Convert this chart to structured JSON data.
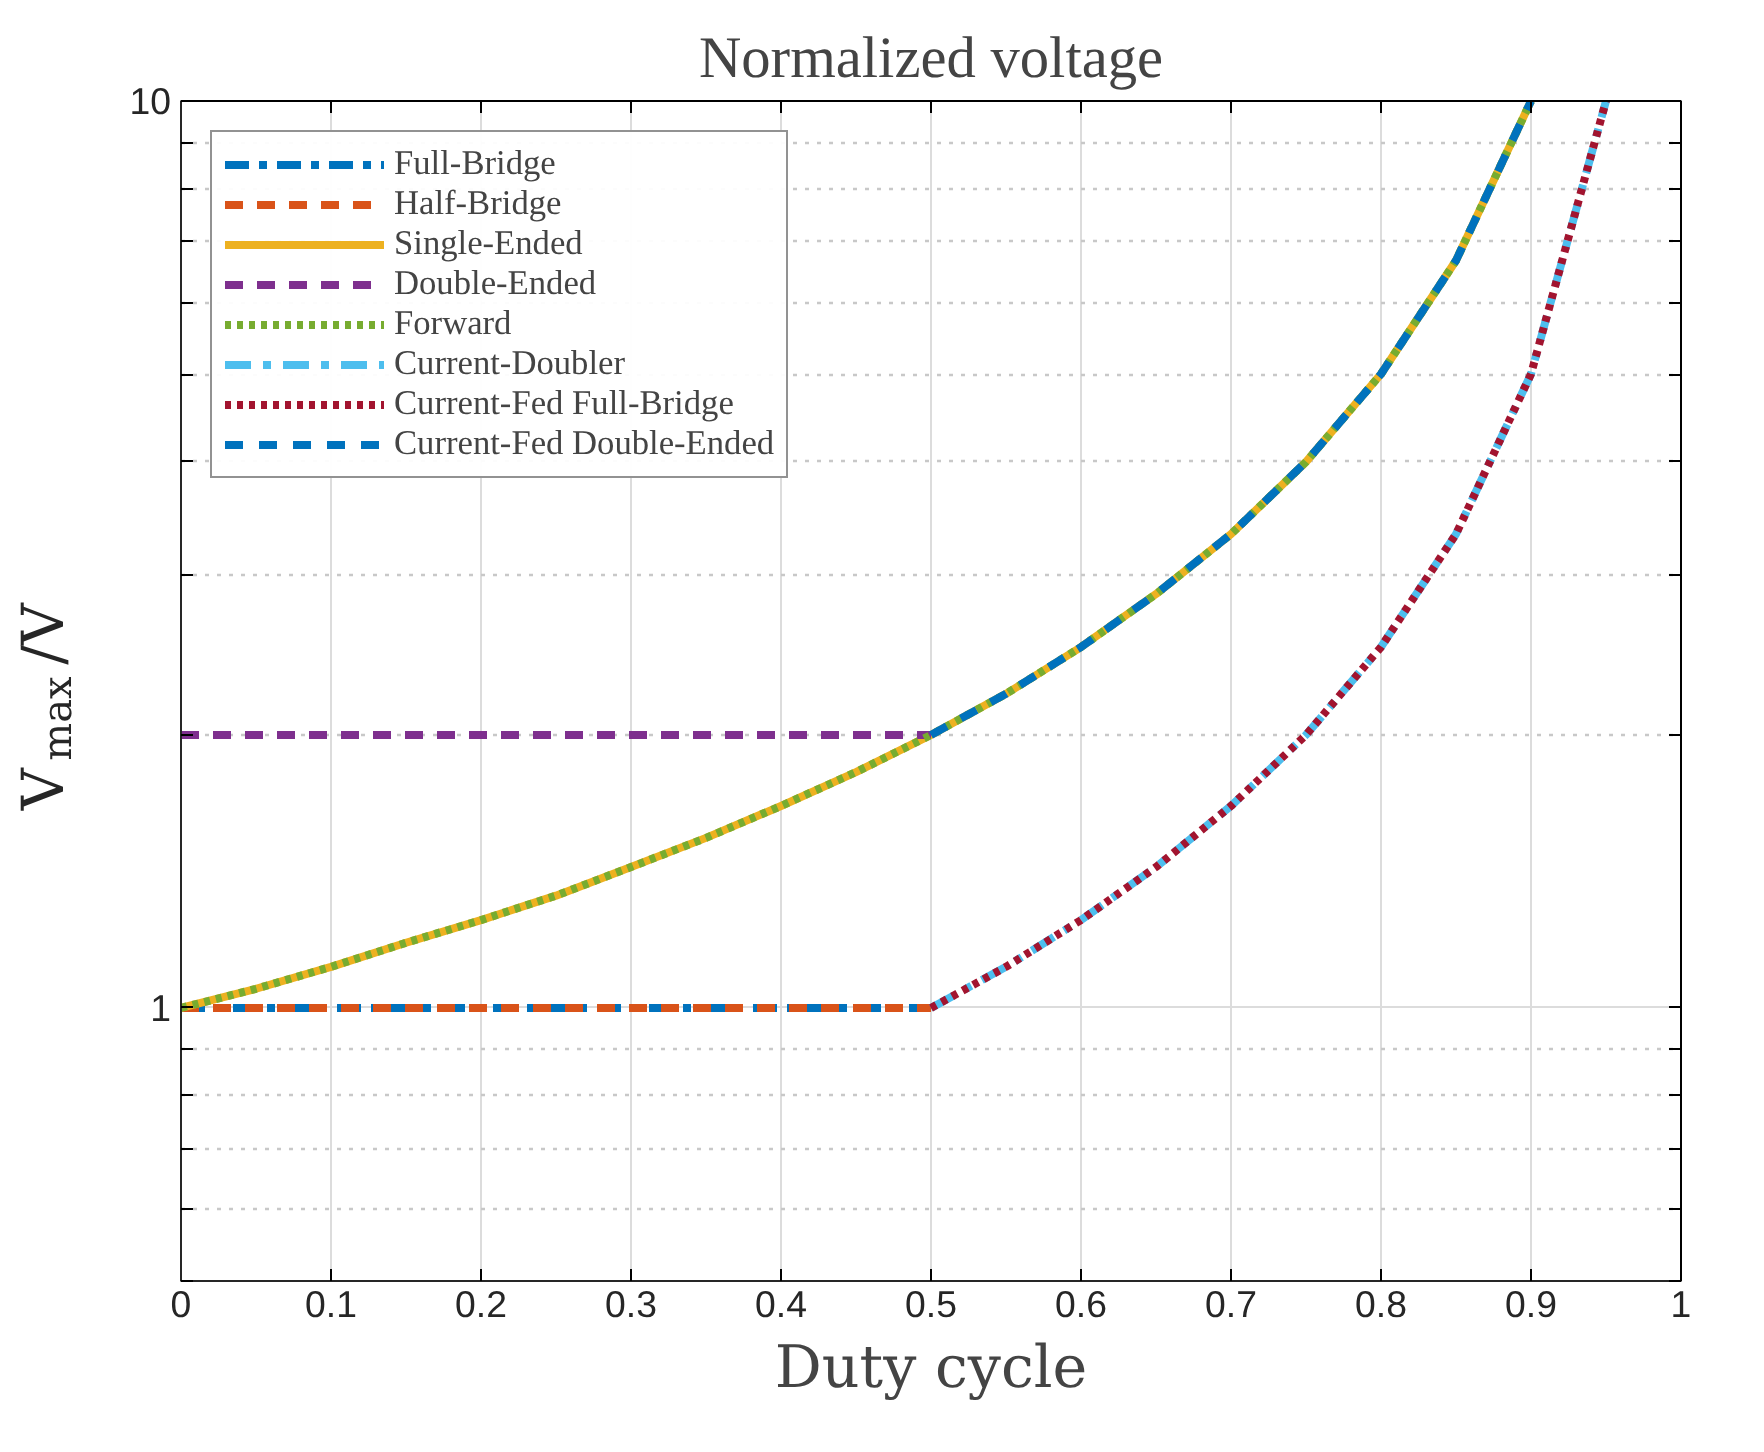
{
  "chart_data": {
    "type": "line",
    "title": "Normalized voltage",
    "xlabel": "Duty cycle",
    "ylabel": "V$_{max}$/V",
    "log": "y",
    "grid": true,
    "legend": "top left",
    "xlim": [
      0,
      1
    ],
    "xticks": [
      0,
      0.1,
      0.2,
      0.3,
      0.4,
      0.5,
      0.6,
      0.7,
      0.8,
      0.9,
      1
    ],
    "ylim": [
      0.5,
      10
    ],
    "yticks": [
      {
        "value": 0.5,
        "label": null
      },
      {
        "value": 0.6,
        "label": null
      },
      {
        "value": 0.7,
        "label": null
      },
      {
        "value": 0.8,
        "label": null
      },
      {
        "value": 0.9,
        "label": null
      },
      1,
      {
        "value": 2,
        "label": null
      },
      {
        "value": 3,
        "label": null
      },
      {
        "value": 4,
        "label": null
      },
      {
        "value": 5,
        "label": null
      },
      {
        "value": 6,
        "label": null
      },
      {
        "value": 7,
        "label": null
      },
      {
        "value": 8,
        "label": null
      },
      {
        "value": 9,
        "label": null
      },
      10
    ],
    "series": [
      {
        "name": "Full-Bridge",
        "color": "#0072bd",
        "line_style": "dashdot",
        "x": [
          0,
          0.5
        ],
        "values": [
          1,
          1
        ]
      },
      {
        "name": "Half-Bridge",
        "color": "#d95319",
        "line_style": "dashed",
        "x": [
          0,
          0.5
        ],
        "values": [
          1,
          1
        ]
      },
      {
        "name": "Single-Ended",
        "color": "#edb120",
        "line_style": "solid",
        "x": [
          0,
          0.05,
          0.1,
          0.15,
          0.2,
          0.25,
          0.3,
          0.35,
          0.4,
          0.45,
          0.5,
          0.55,
          0.6,
          0.65,
          0.7,
          0.75,
          0.8,
          0.85,
          0.9
        ],
        "values": [
          1,
          1.05,
          1.11,
          1.18,
          1.25,
          1.33,
          1.43,
          1.54,
          1.67,
          1.82,
          2,
          2.22,
          2.5,
          2.86,
          3.33,
          4,
          5,
          6.67,
          10
        ]
      },
      {
        "name": "Double-Ended",
        "color": "#7e2f8e",
        "line_style": "dashed",
        "x": [
          0,
          0.5
        ],
        "values": [
          2,
          2
        ]
      },
      {
        "name": "Forward",
        "color": "#77ac30",
        "line_style": "dotted",
        "x": [
          0,
          0.05,
          0.1,
          0.15,
          0.2,
          0.25,
          0.3,
          0.35,
          0.4,
          0.45,
          0.5,
          0.55,
          0.6,
          0.65,
          0.7,
          0.75,
          0.8,
          0.85,
          0.9
        ],
        "values": [
          1,
          1.05,
          1.11,
          1.18,
          1.25,
          1.33,
          1.43,
          1.54,
          1.67,
          1.82,
          2,
          2.22,
          2.5,
          2.86,
          3.33,
          4,
          5,
          6.67,
          10
        ]
      },
      {
        "name": "Current-Doubler",
        "color": "#4dbeee",
        "line_style": "dashdot",
        "x": [
          0.5,
          0.55,
          0.6,
          0.65,
          0.7,
          0.75,
          0.8,
          0.85,
          0.9,
          0.95
        ],
        "values": [
          1,
          1.11,
          1.25,
          1.43,
          1.67,
          2,
          2.5,
          3.33,
          5,
          10
        ]
      },
      {
        "name": "Current-Fed Full-Bridge",
        "color": "#a2142f",
        "line_style": "dotted",
        "x": [
          0.5,
          0.55,
          0.6,
          0.65,
          0.7,
          0.75,
          0.8,
          0.85,
          0.9,
          0.95
        ],
        "values": [
          1,
          1.11,
          1.25,
          1.43,
          1.67,
          2,
          2.5,
          3.33,
          5,
          10
        ]
      },
      {
        "name": "Current-Fed Double-Ended",
        "color": "#0072bd",
        "line_style": "dashed",
        "x": [
          0.5,
          0.55,
          0.6,
          0.65,
          0.7,
          0.75,
          0.8,
          0.85,
          0.9
        ],
        "values": [
          2,
          2.22,
          2.5,
          2.86,
          3.33,
          4,
          5,
          6.67,
          10
        ]
      }
    ]
  }
}
